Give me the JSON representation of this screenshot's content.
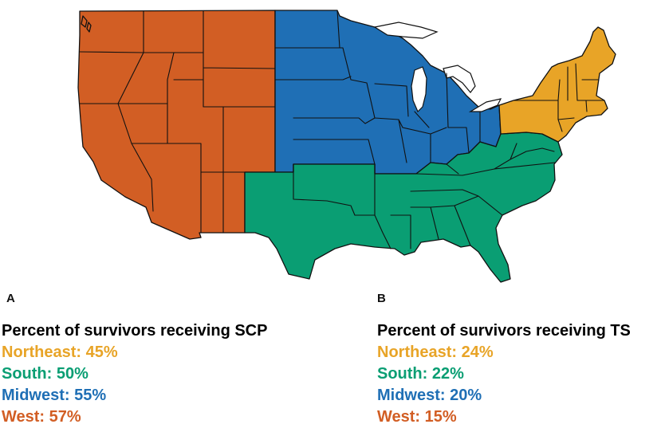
{
  "colors": {
    "northeast": "#E8A427",
    "south": "#0A9E73",
    "midwest": "#1F6FB5",
    "west": "#D25E24",
    "text": "#000000"
  },
  "map": {
    "regions": [
      {
        "key": "west",
        "name": "West"
      },
      {
        "key": "midwest",
        "name": "Midwest"
      },
      {
        "key": "south",
        "name": "South"
      },
      {
        "key": "northeast",
        "name": "Northeast"
      }
    ]
  },
  "panels": [
    {
      "letter": "A",
      "title": "Percent of survivors receiving SCP",
      "rows": [
        {
          "key": "northeast",
          "text": "Northeast: 45%",
          "value": 45
        },
        {
          "key": "south",
          "text": "South: 50%",
          "value": 50
        },
        {
          "key": "midwest",
          "text": "Midwest: 55%",
          "value": 55
        },
        {
          "key": "west",
          "text": "West: 57%",
          "value": 57
        }
      ]
    },
    {
      "letter": "B",
      "title": "Percent of survivors receiving TS",
      "rows": [
        {
          "key": "northeast",
          "text": "Northeast: 24%",
          "value": 24
        },
        {
          "key": "south",
          "text": "South: 22%",
          "value": 22
        },
        {
          "key": "midwest",
          "text": "Midwest: 20%",
          "value": 20
        },
        {
          "key": "west",
          "text": "West: 15%",
          "value": 15
        }
      ]
    }
  ]
}
